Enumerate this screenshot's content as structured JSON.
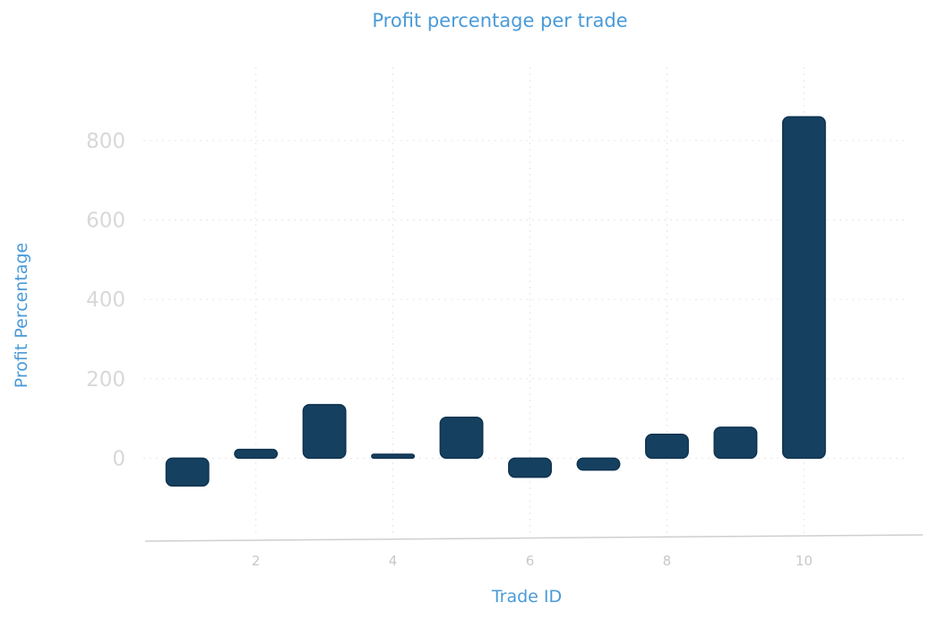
{
  "chart_data": {
    "type": "bar",
    "title": "Profit percentage per trade",
    "xlabel": "Trade ID",
    "ylabel": "Profit Percentage",
    "x": [
      1,
      2,
      3,
      4,
      5,
      6,
      7,
      8,
      9,
      10
    ],
    "values": [
      -70,
      22,
      135,
      10,
      103,
      -48,
      -30,
      60,
      78,
      860
    ],
    "xticks": [
      2,
      4,
      6,
      8,
      10
    ],
    "yticks": [
      0,
      200,
      400,
      600,
      800
    ],
    "xlim": [
      0.2,
      11.8
    ],
    "ylim": [
      -200,
      1030
    ],
    "grid": true,
    "bar_color": "#16405f",
    "text_color": "#4a9ad8"
  }
}
